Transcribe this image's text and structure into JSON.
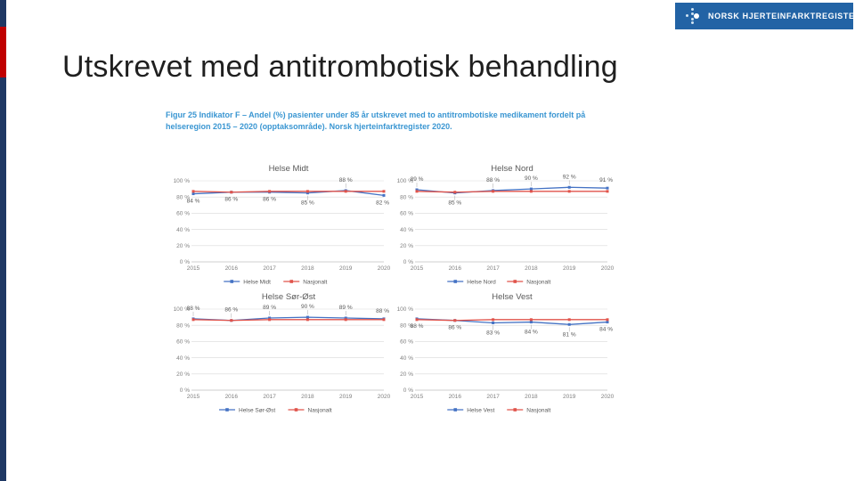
{
  "slide": {
    "title": "Utskrevet med antitrombotisk behandling"
  },
  "logo": {
    "text": "NORSK HJERTEINFARKTREGISTER",
    "bg_color": "#2263a5"
  },
  "figure": {
    "caption_line1": "Figur 25 Indikator F – Andel (%) pasienter under 85 år utskrevet med to antitrombotiske medikament fordelt på",
    "caption_line2": "helseregion 2015 – 2020 (opptaksområde). Norsk hjerteinfarktregister 2020.",
    "caption_color": "#3a96d2"
  },
  "colors": {
    "region_series": "#4472c4",
    "national_series": "#e0534b",
    "gridline": "#d9d9d9",
    "axis_text": "#7f7f7f",
    "label_text": "#595959",
    "stripe_navy": "#1f3864",
    "stripe_red": "#c00000"
  },
  "chart_data": [
    {
      "type": "line",
      "title": "Helse Midt",
      "x": [
        "2015",
        "2016",
        "2017",
        "2018",
        "2019",
        "2020"
      ],
      "ylim": [
        0,
        100
      ],
      "yticks": [
        0,
        20,
        40,
        60,
        80,
        100
      ],
      "ytick_suffix": " %",
      "grid": true,
      "legend_position": "bottom",
      "series": [
        {
          "name": "Helse Midt",
          "color": "#4472c4",
          "values": [
            84,
            86,
            86,
            85,
            88,
            82
          ],
          "labels": [
            "84 %",
            "86 %",
            "86 %",
            "85 %",
            "88 %",
            "82 %"
          ],
          "label_pos": [
            "below",
            "below",
            "below",
            "belowL",
            "aboveL",
            "below"
          ]
        },
        {
          "name": "Nasjonalt",
          "color": "#e0534b",
          "values": [
            87,
            86,
            87,
            87,
            87,
            87
          ]
        }
      ]
    },
    {
      "type": "line",
      "title": "Helse Nord",
      "x": [
        "2015",
        "2016",
        "2017",
        "2018",
        "2019",
        "2020"
      ],
      "ylim": [
        0,
        100
      ],
      "yticks": [
        0,
        20,
        40,
        60,
        80,
        100
      ],
      "ytick_suffix": " %",
      "grid": true,
      "legend_position": "bottom",
      "series": [
        {
          "name": "Helse Nord",
          "color": "#4472c4",
          "values": [
            89,
            85,
            88,
            90,
            92,
            91
          ],
          "labels": [
            "89 %",
            "85 %",
            "88 %",
            "90 %",
            "92 %",
            "91 %"
          ],
          "label_pos": [
            "aboveL",
            "belowL",
            "aboveL",
            "aboveL",
            "aboveL",
            "above"
          ]
        },
        {
          "name": "Nasjonalt",
          "color": "#e0534b",
          "values": [
            87,
            86,
            87,
            87,
            87,
            87
          ]
        }
      ]
    },
    {
      "type": "line",
      "title": "Helse Sør-Øst",
      "x": [
        "2015",
        "2016",
        "2017",
        "2018",
        "2019",
        "2020"
      ],
      "ylim": [
        0,
        100
      ],
      "yticks": [
        0,
        20,
        40,
        60,
        80,
        100
      ],
      "ytick_suffix": " %",
      "grid": true,
      "legend_position": "bottom",
      "series": [
        {
          "name": "Helse Sør-Øst",
          "color": "#4472c4",
          "values": [
            88,
            86,
            89,
            90,
            89,
            88
          ],
          "labels": [
            "88 %",
            "86 %",
            "89 %",
            "90 %",
            "89 %",
            "88 %"
          ],
          "label_pos": [
            "aboveL",
            "aboveL",
            "aboveL",
            "aboveL",
            "aboveL",
            "above"
          ]
        },
        {
          "name": "Nasjonalt",
          "color": "#e0534b",
          "values": [
            87,
            86,
            87,
            87,
            87,
            87
          ]
        }
      ]
    },
    {
      "type": "line",
      "title": "Helse Vest",
      "x": [
        "2015",
        "2016",
        "2017",
        "2018",
        "2019",
        "2020"
      ],
      "ylim": [
        0,
        100
      ],
      "yticks": [
        0,
        20,
        40,
        60,
        80,
        100
      ],
      "ytick_suffix": " %",
      "grid": true,
      "legend_position": "bottom",
      "series": [
        {
          "name": "Helse Vest",
          "color": "#4472c4",
          "values": [
            88,
            86,
            83,
            84,
            81,
            84
          ],
          "labels": [
            "88 %",
            "86 %",
            "83 %",
            "84 %",
            "81 %",
            "84 %"
          ],
          "label_pos": [
            "below",
            "below",
            "belowL",
            "belowL",
            "belowL",
            "below"
          ]
        },
        {
          "name": "Nasjonalt",
          "color": "#e0534b",
          "values": [
            87,
            86,
            87,
            87,
            87,
            87
          ]
        }
      ]
    }
  ]
}
